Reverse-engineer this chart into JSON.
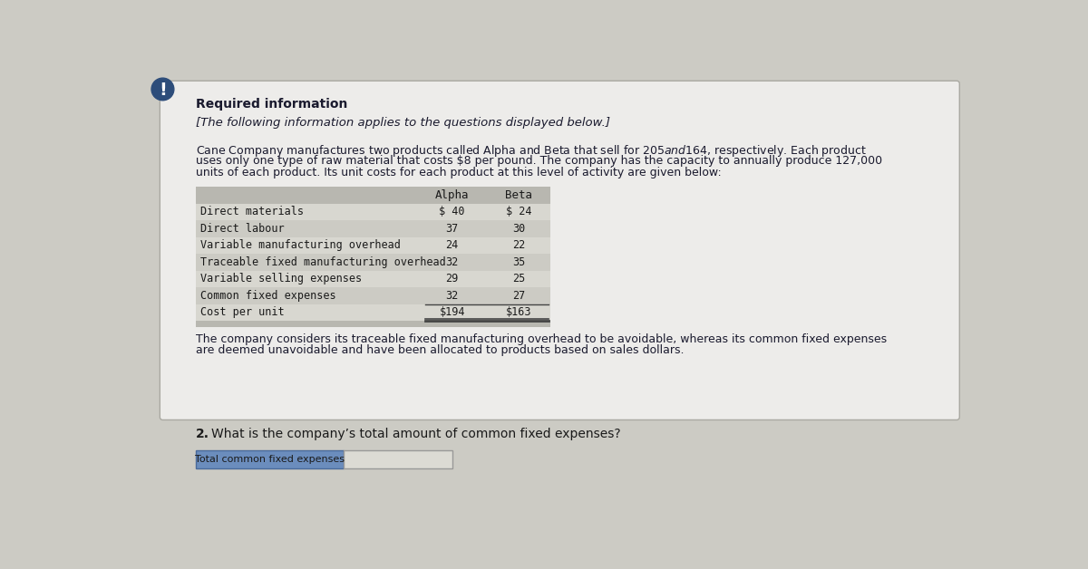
{
  "bg_color": "#cccbc4",
  "card_color": "#edecea",
  "card_border": "#aaa9a2",
  "exclamation_bg": "#2d4d7a",
  "title_bold": "Required information",
  "subtitle_italic": "[The following information applies to the questions displayed below.]",
  "para_line1": "Cane Company manufactures two products called Alpha and Beta that sell for $205 and $164, respectively. Each product",
  "para_line2": "uses only one type of raw material that costs $8 per pound. The company has the capacity to annually produce 127,000",
  "para_line3": "units of each product. Its unit costs for each product at this level of activity are given below:",
  "table_rows": [
    [
      "Direct materials",
      "$ 40",
      "$ 24"
    ],
    [
      "Direct labour",
      "37",
      "30"
    ],
    [
      "Variable manufacturing overhead",
      "24",
      "22"
    ],
    [
      "Traceable fixed manufacturing overhead",
      "32",
      "35"
    ],
    [
      "Variable selling expenses",
      "29",
      "25"
    ],
    [
      "Common fixed expenses",
      "32",
      "27"
    ],
    [
      "Cost per unit",
      "$194",
      "$163"
    ]
  ],
  "table_header_bg": "#b8b7b0",
  "table_row_bg1": "#d8d7d0",
  "table_row_bg2": "#cccbc4",
  "footer_line1": "The company considers its traceable fixed manufacturing overhead to be avoidable, whereas its common fixed expenses",
  "footer_line2": "are deemed unavoidable and have been allocated to products based on sales dollars.",
  "q2_text": "What is the company’s total amount of common fixed expenses?",
  "label_text": "Total common fixed expenses",
  "label_bg": "#6b8dbd",
  "label_border": "#4a6a9a",
  "input_bg": "#dcdbd4",
  "input_border": "#999998"
}
